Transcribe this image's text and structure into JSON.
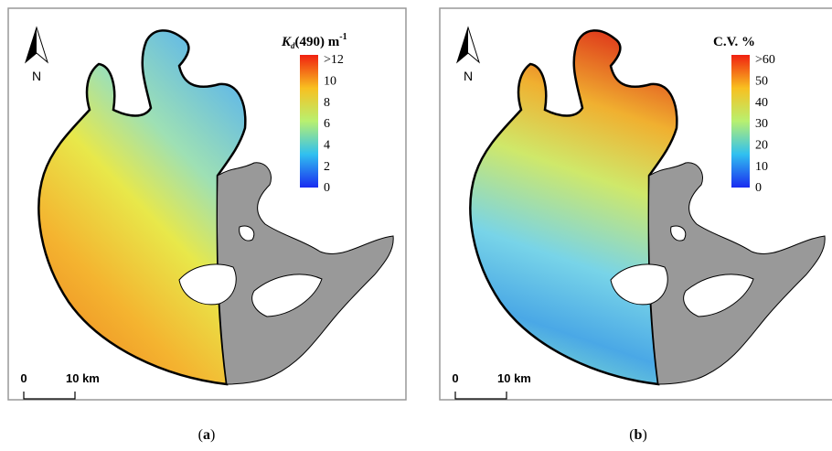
{
  "panels": [
    {
      "legend_title": [
        "K",
        "d",
        "(490) m",
        "-1"
      ],
      "legend_ticks": [
        ">12",
        "10",
        "8",
        "6",
        "4",
        "2",
        "0"
      ],
      "north": "N",
      "scale_labels": [
        "0",
        "10 km"
      ],
      "caption": [
        "(",
        "a",
        ")"
      ]
    },
    {
      "legend_title": [
        "C.V. %"
      ],
      "legend_ticks": [
        ">60",
        "50",
        "40",
        "30",
        "20",
        "10",
        "0"
      ],
      "north": "N",
      "scale_labels": [
        "0",
        "10 km"
      ],
      "caption": [
        "(",
        "b",
        ")"
      ]
    }
  ]
}
